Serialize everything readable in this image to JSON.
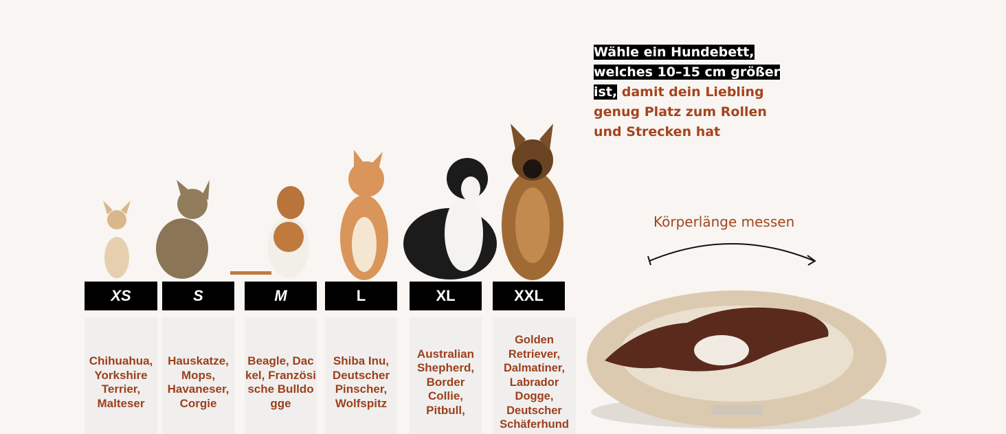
{
  "headline": {
    "highlighted": "Wähle ein Hundebett, welches 10–15 cm größer ist,",
    "rest": "damit dein Liebling genug Platz zum Rollen und Strecken hat"
  },
  "measure_label": "Körperlänge messen",
  "sizes": [
    {
      "label": "XS",
      "breeds": "Chihuahua, Yorkshire Terrier, Malteser",
      "animal": "chihuahua"
    },
    {
      "label": "S",
      "breeds": "Hauskatze, Mops, Havaneser, Corgie",
      "animal": "cat"
    },
    {
      "label": "M",
      "breeds": "Beagle, Dackel, Französische Bulldogge",
      "animal": "beagle"
    },
    {
      "label": "L",
      "breeds": "Shiba Inu, Deutscher Pinscher, Wolfspitz",
      "animal": "shiba-inu"
    },
    {
      "label": "XL",
      "breeds": "Australian Shepherd, Border Collie, Pitbull,",
      "animal": "australian-shepherd"
    },
    {
      "label": "XXL",
      "breeds": "Golden Retriever, Dalmatiner, Labrador Dogge, Deutscher Schäferhund",
      "animal": "german-shepherd"
    }
  ],
  "colors": {
    "accent": "#a4441e",
    "background": "#f8f5f2",
    "label_bg": "#000000"
  }
}
